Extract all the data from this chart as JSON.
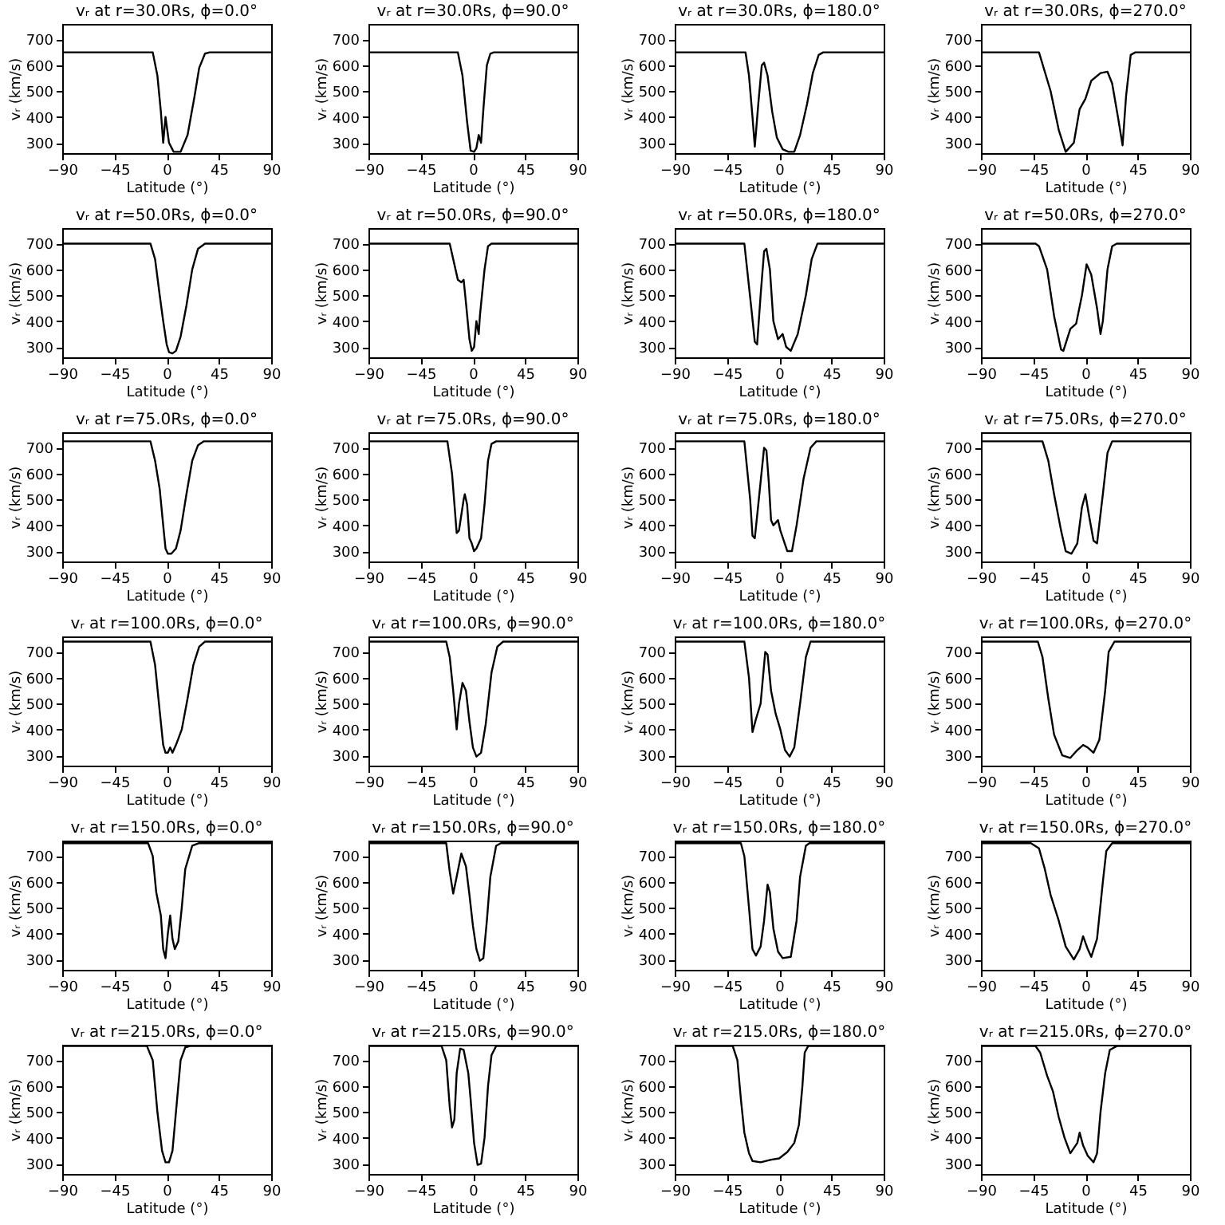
{
  "chart_data": [
    {
      "type": "line",
      "title": "vᵣ at r=30.0Rs, ϕ=0.0°",
      "xlabel": "Latitude (°)",
      "ylabel": "vᵣ (km/s)",
      "color": "#000000",
      "xlim": [
        -90,
        90
      ],
      "xticks": [
        -90,
        -45,
        0,
        45,
        90
      ],
      "ylim": [
        260,
        760
      ],
      "yticks": [
        300,
        400,
        500,
        600,
        700
      ],
      "x": [
        -90,
        -12,
        -8,
        -5,
        -3,
        -1,
        2,
        6,
        12,
        18,
        24,
        28,
        33,
        37,
        90
      ],
      "values": [
        650,
        650,
        560,
        420,
        300,
        400,
        300,
        265,
        265,
        330,
        480,
        590,
        645,
        650,
        650
      ]
    },
    {
      "type": "line",
      "title": "vᵣ at r=30.0Rs, ϕ=90.0°",
      "xlabel": "Latitude (°)",
      "ylabel": "vᵣ (km/s)",
      "color": "#000000",
      "xlim": [
        -90,
        90
      ],
      "xticks": [
        -90,
        -45,
        0,
        45,
        90
      ],
      "ylim": [
        260,
        760
      ],
      "yticks": [
        300,
        400,
        500,
        600,
        700
      ],
      "x": [
        -90,
        -13,
        -9,
        -5,
        -2,
        1,
        3,
        5,
        7,
        9,
        12,
        15,
        18,
        90
      ],
      "values": [
        650,
        650,
        560,
        380,
        270,
        265,
        280,
        330,
        300,
        430,
        600,
        645,
        650,
        650
      ]
    },
    {
      "type": "line",
      "title": "vᵣ at r=30.0Rs, ϕ=180.0°",
      "xlabel": "Latitude (°)",
      "ylabel": "vᵣ (km/s)",
      "color": "#000000",
      "xlim": [
        -90,
        90
      ],
      "xticks": [
        -90,
        -45,
        0,
        45,
        90
      ],
      "ylim": [
        260,
        760
      ],
      "yticks": [
        300,
        400,
        500,
        600,
        700
      ],
      "x": [
        -90,
        -29,
        -26,
        -23,
        -21,
        -18,
        -15,
        -13,
        -10,
        -6,
        -2,
        3,
        8,
        13,
        18,
        24,
        29,
        34,
        38,
        90
      ],
      "values": [
        650,
        650,
        560,
        400,
        285,
        450,
        600,
        610,
        560,
        420,
        320,
        275,
        265,
        265,
        330,
        450,
        570,
        640,
        650,
        650
      ]
    },
    {
      "type": "line",
      "title": "vᵣ at r=30.0Rs, ϕ=270.0°",
      "xlabel": "Latitude (°)",
      "ylabel": "vᵣ (km/s)",
      "color": "#000000",
      "xlim": [
        -90,
        90
      ],
      "xticks": [
        -90,
        -45,
        0,
        45,
        90
      ],
      "ylim": [
        260,
        760
      ],
      "yticks": [
        300,
        400,
        500,
        600,
        700
      ],
      "x": [
        -90,
        -40,
        -30,
        -23,
        -17,
        -10,
        -5,
        0,
        5,
        13,
        19,
        23,
        28,
        32,
        35,
        39,
        43,
        90
      ],
      "values": [
        650,
        650,
        500,
        350,
        265,
        300,
        430,
        470,
        540,
        570,
        575,
        530,
        400,
        290,
        480,
        640,
        650,
        650
      ]
    },
    {
      "type": "line",
      "title": "vᵣ at r=50.0Rs, ϕ=0.0°",
      "xlabel": "Latitude (°)",
      "ylabel": "vᵣ (km/s)",
      "color": "#000000",
      "xlim": [
        -90,
        90
      ],
      "xticks": [
        -90,
        -45,
        0,
        45,
        90
      ],
      "ylim": [
        260,
        760
      ],
      "yticks": [
        300,
        400,
        500,
        600,
        700
      ],
      "x": [
        -90,
        -14,
        -10,
        -6,
        -3,
        0,
        2,
        5,
        8,
        12,
        17,
        22,
        27,
        33,
        90
      ],
      "values": [
        700,
        700,
        640,
        500,
        400,
        310,
        280,
        275,
        285,
        340,
        460,
        600,
        680,
        700,
        700
      ]
    },
    {
      "type": "line",
      "title": "vᵣ at r=50.0Rs, ϕ=90.0°",
      "xlabel": "Latitude (°)",
      "ylabel": "vᵣ (km/s)",
      "color": "#000000",
      "xlim": [
        -90,
        90
      ],
      "xticks": [
        -90,
        -45,
        0,
        45,
        90
      ],
      "ylim": [
        260,
        760
      ],
      "yticks": [
        300,
        400,
        500,
        600,
        700
      ],
      "x": [
        -90,
        -20,
        -17,
        -13,
        -10,
        -8,
        -6,
        -3,
        -1,
        1,
        3,
        5,
        6,
        10,
        13,
        16,
        90
      ],
      "values": [
        700,
        700,
        640,
        560,
        550,
        560,
        470,
        330,
        285,
        300,
        400,
        350,
        420,
        600,
        690,
        700,
        700
      ]
    },
    {
      "type": "line",
      "title": "vᵣ at r=50.0Rs, ϕ=180.0°",
      "xlabel": "Latitude (°)",
      "ylabel": "vᵣ (km/s)",
      "color": "#000000",
      "xlim": [
        -90,
        90
      ],
      "xticks": [
        -90,
        -45,
        0,
        45,
        90
      ],
      "ylim": [
        260,
        760
      ],
      "yticks": [
        300,
        400,
        500,
        600,
        700
      ],
      "x": [
        -90,
        -30,
        -24,
        -21,
        -19,
        -16,
        -13,
        -11,
        -8,
        -5,
        -1,
        3,
        6,
        10,
        16,
        23,
        28,
        33,
        90
      ],
      "values": [
        700,
        700,
        450,
        320,
        310,
        500,
        670,
        680,
        600,
        400,
        330,
        350,
        300,
        285,
        350,
        500,
        640,
        700,
        700
      ]
    },
    {
      "type": "line",
      "title": "vᵣ at r=50.0Rs, ϕ=270.0°",
      "xlabel": "Latitude (°)",
      "ylabel": "vᵣ (km/s)",
      "color": "#000000",
      "xlim": [
        -90,
        90
      ],
      "xticks": [
        -90,
        -45,
        0,
        45,
        90
      ],
      "ylim": [
        260,
        760
      ],
      "yticks": [
        300,
        400,
        500,
        600,
        700
      ],
      "x": [
        -90,
        -43,
        -40,
        -33,
        -27,
        -21,
        -19,
        -13,
        -8,
        -3,
        1,
        5,
        10,
        13,
        15,
        19,
        23,
        27,
        90
      ],
      "values": [
        700,
        700,
        690,
        600,
        420,
        290,
        285,
        370,
        390,
        500,
        620,
        580,
        450,
        350,
        400,
        600,
        690,
        700,
        700
      ]
    },
    {
      "type": "line",
      "title": "vᵣ at r=75.0Rs, ϕ=0.0°",
      "xlabel": "Latitude (°)",
      "ylabel": "vᵣ (km/s)",
      "color": "#000000",
      "xlim": [
        -90,
        90
      ],
      "xticks": [
        -90,
        -45,
        0,
        45,
        90
      ],
      "ylim": [
        260,
        760
      ],
      "yticks": [
        300,
        400,
        500,
        600,
        700
      ],
      "x": [
        -90,
        -14,
        -10,
        -6,
        -3,
        -1,
        1,
        4,
        8,
        12,
        17,
        22,
        27,
        32,
        90
      ],
      "values": [
        725,
        725,
        650,
        540,
        400,
        310,
        290,
        290,
        310,
        380,
        520,
        650,
        710,
        725,
        725
      ]
    },
    {
      "type": "line",
      "title": "vᵣ at r=75.0Rs, ϕ=90.0°",
      "xlabel": "Latitude (°)",
      "ylabel": "vᵣ (km/s)",
      "color": "#000000",
      "xlim": [
        -90,
        90
      ],
      "xticks": [
        -90,
        -45,
        0,
        45,
        90
      ],
      "ylim": [
        260,
        760
      ],
      "yticks": [
        300,
        400,
        500,
        600,
        700
      ],
      "x": [
        -90,
        -22,
        -18,
        -14,
        -12,
        -8,
        -7,
        -5,
        -3,
        -1,
        1,
        3,
        7,
        10,
        13,
        16,
        20,
        90
      ],
      "values": [
        725,
        725,
        600,
        370,
        380,
        500,
        520,
        480,
        350,
        330,
        300,
        310,
        350,
        480,
        650,
        715,
        725,
        725
      ]
    },
    {
      "type": "line",
      "title": "vᵣ at r=75.0Rs, ϕ=180.0°",
      "xlabel": "Latitude (°)",
      "ylabel": "vᵣ (km/s)",
      "color": "#000000",
      "xlim": [
        -90,
        90
      ],
      "xticks": [
        -90,
        -45,
        0,
        45,
        90
      ],
      "ylim": [
        260,
        760
      ],
      "yticks": [
        300,
        400,
        500,
        600,
        700
      ],
      "x": [
        -90,
        -30,
        -25,
        -23,
        -21,
        -18,
        -13,
        -11,
        -9,
        -7,
        -5,
        -1,
        1,
        7,
        11,
        15,
        21,
        27,
        32,
        90
      ],
      "values": [
        725,
        725,
        500,
        360,
        350,
        480,
        700,
        690,
        570,
        420,
        400,
        420,
        380,
        300,
        300,
        400,
        580,
        700,
        725,
        725
      ]
    },
    {
      "type": "line",
      "title": "vᵣ at r=75.0Rs, ϕ=270.0°",
      "xlabel": "Latitude (°)",
      "ylabel": "vᵣ (km/s)",
      "color": "#000000",
      "xlim": [
        -90,
        90
      ],
      "xticks": [
        -90,
        -45,
        0,
        45,
        90
      ],
      "ylim": [
        260,
        760
      ],
      "yticks": [
        300,
        400,
        500,
        600,
        700
      ],
      "x": [
        -90,
        -37,
        -32,
        -27,
        -21,
        -17,
        -12,
        -7,
        -3,
        0,
        3,
        7,
        10,
        15,
        19,
        23,
        90
      ],
      "values": [
        725,
        725,
        650,
        520,
        380,
        300,
        290,
        330,
        470,
        520,
        440,
        340,
        330,
        520,
        680,
        725,
        725
      ]
    },
    {
      "type": "line",
      "title": "vᵣ at r=100.0Rs, ϕ=0.0°",
      "xlabel": "Latitude (°)",
      "ylabel": "vᵣ (km/s)",
      "color": "#000000",
      "xlim": [
        -90,
        90
      ],
      "xticks": [
        -90,
        -45,
        0,
        45,
        90
      ],
      "ylim": [
        260,
        760
      ],
      "yticks": [
        300,
        400,
        500,
        600,
        700
      ],
      "x": [
        -90,
        -14,
        -10,
        -6,
        -3,
        -1,
        1,
        3,
        5,
        8,
        13,
        18,
        23,
        28,
        33,
        90
      ],
      "values": [
        740,
        740,
        650,
        470,
        340,
        310,
        310,
        330,
        310,
        340,
        400,
        520,
        650,
        720,
        740,
        740
      ]
    },
    {
      "type": "line",
      "title": "vᵣ at r=100.0Rs, ϕ=90.0°",
      "xlabel": "Latitude (°)",
      "ylabel": "vᵣ (km/s)",
      "color": "#000000",
      "xlim": [
        -90,
        90
      ],
      "xticks": [
        -90,
        -45,
        0,
        45,
        90
      ],
      "ylim": [
        260,
        760
      ],
      "yticks": [
        300,
        400,
        500,
        600,
        700
      ],
      "x": [
        -90,
        -23,
        -20,
        -17,
        -14,
        -12,
        -9,
        -6,
        -3,
        0,
        3,
        7,
        11,
        16,
        21,
        26,
        90
      ],
      "values": [
        740,
        740,
        680,
        550,
        400,
        500,
        580,
        550,
        430,
        330,
        295,
        310,
        420,
        620,
        720,
        740,
        740
      ]
    },
    {
      "type": "line",
      "title": "vᵣ at r=100.0Rs, ϕ=180.0°",
      "xlabel": "Latitude (°)",
      "ylabel": "vᵣ (km/s)",
      "color": "#000000",
      "xlim": [
        -90,
        90
      ],
      "xticks": [
        -90,
        -45,
        0,
        45,
        90
      ],
      "ylim": [
        260,
        760
      ],
      "yticks": [
        300,
        400,
        500,
        600,
        700
      ],
      "x": [
        -90,
        -30,
        -26,
        -23,
        -20,
        -16,
        -12,
        -10,
        -7,
        -3,
        1,
        5,
        9,
        13,
        18,
        23,
        27,
        90
      ],
      "values": [
        740,
        740,
        600,
        390,
        440,
        500,
        700,
        690,
        550,
        460,
        400,
        320,
        295,
        330,
        500,
        680,
        740,
        740
      ]
    },
    {
      "type": "line",
      "title": "vᵣ at r=100.0Rs, ϕ=270.0°",
      "xlabel": "Latitude (°)",
      "ylabel": "vᵣ (km/s)",
      "color": "#000000",
      "xlim": [
        -90,
        90
      ],
      "xticks": [
        -90,
        -45,
        0,
        45,
        90
      ],
      "ylim": [
        260,
        760
      ],
      "yticks": [
        300,
        400,
        500,
        600,
        700
      ],
      "x": [
        -90,
        -41,
        -37,
        -32,
        -27,
        -20,
        -13,
        -7,
        -2,
        2,
        7,
        12,
        17,
        20,
        25,
        90
      ],
      "values": [
        740,
        740,
        680,
        520,
        380,
        300,
        290,
        320,
        340,
        330,
        310,
        360,
        550,
        700,
        740,
        740
      ]
    },
    {
      "type": "line",
      "title": "vᵣ at r=150.0Rs, ϕ=0.0°",
      "xlabel": "Latitude (°)",
      "ylabel": "vᵣ (km/s)",
      "color": "#000000",
      "xlim": [
        -90,
        90
      ],
      "xticks": [
        -90,
        -45,
        0,
        45,
        90
      ],
      "ylim": [
        260,
        760
      ],
      "yticks": [
        300,
        400,
        500,
        600,
        700
      ],
      "x": [
        -90,
        -16,
        -12,
        -9,
        -5,
        -3,
        -1,
        1,
        3,
        5,
        7,
        10,
        13,
        16,
        22,
        28,
        90
      ],
      "values": [
        750,
        750,
        700,
        560,
        470,
        340,
        305,
        400,
        470,
        380,
        340,
        370,
        500,
        650,
        740,
        750,
        750
      ]
    },
    {
      "type": "line",
      "title": "vᵣ at r=150.0Rs, ϕ=90.0°",
      "xlabel": "Latitude (°)",
      "ylabel": "vᵣ (km/s)",
      "color": "#000000",
      "xlim": [
        -90,
        90
      ],
      "xticks": [
        -90,
        -45,
        0,
        45,
        90
      ],
      "ylim": [
        260,
        760
      ],
      "yticks": [
        300,
        400,
        500,
        600,
        700
      ],
      "x": [
        -90,
        -23,
        -20,
        -17,
        -14,
        -10,
        -6,
        -3,
        0,
        3,
        6,
        9,
        12,
        15,
        20,
        24,
        90
      ],
      "values": [
        750,
        750,
        640,
        555,
        620,
        710,
        660,
        550,
        430,
        340,
        295,
        305,
        450,
        620,
        740,
        750,
        750
      ]
    },
    {
      "type": "line",
      "title": "vᵣ at r=150.0Rs, ϕ=180.0°",
      "xlabel": "Latitude (°)",
      "ylabel": "vᵣ (km/s)",
      "color": "#000000",
      "xlim": [
        -90,
        90
      ],
      "xticks": [
        -90,
        -45,
        0,
        45,
        90
      ],
      "ylim": [
        260,
        760
      ],
      "yticks": [
        300,
        400,
        500,
        600,
        700
      ],
      "x": [
        -90,
        -33,
        -30,
        -26,
        -23,
        -20,
        -16,
        -13,
        -10,
        -8,
        -5,
        -1,
        3,
        10,
        15,
        18,
        23,
        26,
        90
      ],
      "values": [
        750,
        750,
        700,
        500,
        340,
        315,
        350,
        450,
        590,
        560,
        420,
        330,
        305,
        310,
        450,
        620,
        740,
        750,
        750
      ]
    },
    {
      "type": "line",
      "title": "vᵣ at r=150.0Rs, ϕ=270.0°",
      "xlabel": "Latitude (°)",
      "ylabel": "vᵣ (km/s)",
      "color": "#000000",
      "xlim": [
        -90,
        90
      ],
      "xticks": [
        -90,
        -45,
        0,
        45,
        90
      ],
      "ylim": [
        260,
        760
      ],
      "yticks": [
        300,
        400,
        500,
        600,
        700
      ],
      "x": [
        -90,
        -47,
        -40,
        -35,
        -30,
        -23,
        -17,
        -10,
        -5,
        -2,
        2,
        5,
        10,
        15,
        18,
        23,
        90
      ],
      "values": [
        750,
        750,
        730,
        650,
        550,
        450,
        350,
        300,
        340,
        390,
        340,
        310,
        380,
        600,
        720,
        750,
        750
      ]
    },
    {
      "type": "line",
      "title": "vᵣ at r=215.0Rs, ϕ=0.0°",
      "xlabel": "Latitude (°)",
      "ylabel": "vᵣ (km/s)",
      "color": "#000000",
      "xlim": [
        -90,
        90
      ],
      "xticks": [
        -90,
        -45,
        0,
        45,
        90
      ],
      "ylim": [
        260,
        760
      ],
      "yticks": [
        300,
        400,
        500,
        600,
        700
      ],
      "x": [
        -90,
        -17,
        -12,
        -8,
        -4,
        -1,
        2,
        5,
        8,
        12,
        16,
        20,
        90
      ],
      "values": [
        755,
        755,
        700,
        500,
        350,
        305,
        305,
        350,
        500,
        700,
        750,
        755,
        755
      ]
    },
    {
      "type": "line",
      "title": "vᵣ at r=215.0Rs, ϕ=90.0°",
      "xlabel": "Latitude (°)",
      "ylabel": "vᵣ (km/s)",
      "color": "#000000",
      "xlim": [
        -90,
        90
      ],
      "xticks": [
        -90,
        -45,
        0,
        45,
        90
      ],
      "ylim": [
        260,
        760
      ],
      "yticks": [
        300,
        400,
        500,
        600,
        700
      ],
      "x": [
        -90,
        -27,
        -23,
        -20,
        -18,
        -16,
        -14,
        -11,
        -8,
        -4,
        -2,
        1,
        4,
        7,
        10,
        13,
        16,
        20,
        90
      ],
      "values": [
        755,
        755,
        700,
        520,
        440,
        470,
        650,
        745,
        740,
        650,
        550,
        380,
        295,
        300,
        400,
        600,
        720,
        755,
        755
      ]
    },
    {
      "type": "line",
      "title": "vᵣ at r=215.0Rs, ϕ=180.0°",
      "xlabel": "Latitude (°)",
      "ylabel": "vᵣ (km/s)",
      "color": "#000000",
      "xlim": [
        -90,
        90
      ],
      "xticks": [
        -90,
        -45,
        0,
        45,
        90
      ],
      "ylim": [
        260,
        760
      ],
      "yticks": [
        300,
        400,
        500,
        600,
        700
      ],
      "x": [
        -90,
        -40,
        -36,
        -33,
        -30,
        -26,
        -23,
        -16,
        -7,
        0,
        7,
        13,
        17,
        20,
        22,
        25,
        90
      ],
      "values": [
        755,
        755,
        700,
        550,
        420,
        340,
        310,
        305,
        315,
        320,
        345,
        380,
        450,
        600,
        730,
        755,
        755
      ]
    },
    {
      "type": "line",
      "title": "vᵣ at r=215.0Rs, ϕ=270.0°",
      "xlabel": "Latitude (°)",
      "ylabel": "vᵣ (km/s)",
      "color": "#000000",
      "xlim": [
        -90,
        90
      ],
      "xticks": [
        -90,
        -45,
        0,
        45,
        90
      ],
      "ylim": [
        260,
        760
      ],
      "yticks": [
        300,
        400,
        500,
        600,
        700
      ],
      "x": [
        -90,
        -43,
        -39,
        -33,
        -28,
        -23,
        -18,
        -13,
        -10,
        -7,
        -5,
        -2,
        2,
        7,
        10,
        13,
        17,
        21,
        27,
        90
      ],
      "values": [
        755,
        755,
        730,
        640,
        580,
        480,
        400,
        340,
        360,
        380,
        420,
        370,
        330,
        305,
        340,
        500,
        650,
        740,
        755,
        755
      ]
    }
  ]
}
